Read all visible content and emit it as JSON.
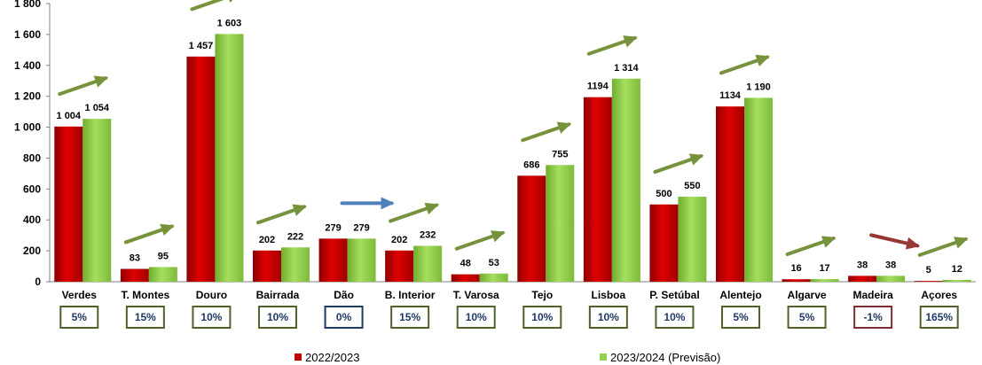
{
  "chart_data": {
    "type": "bar",
    "ylim": [
      0,
      1800
    ],
    "y_ticks": [
      "0",
      "200",
      "400",
      "600",
      "800",
      "1 000",
      "1 200",
      "1 400",
      "1 600",
      "1 800"
    ],
    "categories": [
      "Verdes",
      "T. Montes",
      "Douro",
      "Bairrada",
      "Dão",
      "B. Interior",
      "T. Varosa",
      "Tejo",
      "Lisboa",
      "P. Setúbal",
      "Alentejo",
      "Algarve",
      "Madeira",
      "Açores"
    ],
    "series": [
      {
        "name": "2022/2023",
        "color": "#c00000",
        "values": [
          1004,
          83,
          1457,
          202,
          279,
          202,
          48,
          686,
          1194,
          500,
          1134,
          16,
          38,
          5
        ],
        "labels": [
          "1 004",
          "83",
          "1 457",
          "202",
          "279",
          "202",
          "48",
          "686",
          "1194",
          "500",
          "1134",
          "16",
          "38",
          "5"
        ]
      },
      {
        "name": "2023/2024 (Previsão)",
        "color": "#92d050",
        "values": [
          1054,
          95,
          1603,
          222,
          279,
          232,
          53,
          755,
          1314,
          550,
          1190,
          17,
          38,
          12
        ],
        "labels": [
          "1 054",
          "95",
          "1 603",
          "222",
          "279",
          "232",
          "53",
          "755",
          "1 314",
          "550",
          "1 190",
          "17",
          "38",
          "12"
        ]
      }
    ],
    "change_pct": [
      "5%",
      "15%",
      "10%",
      "10%",
      "0%",
      "15%",
      "10%",
      "10%",
      "10%",
      "10%",
      "5%",
      "5%",
      "-1%",
      "165%"
    ],
    "trend": [
      "up",
      "up",
      "up",
      "up",
      "flat",
      "up",
      "up",
      "up",
      "up",
      "up",
      "up",
      "up",
      "down",
      "up"
    ],
    "trend_colors": {
      "up": "#76933c",
      "flat": "#4f81bd",
      "down": "#953735"
    },
    "box_colors": {
      "up": "#4f6228",
      "flat": "#1f3864",
      "down": "#7b2c2c"
    },
    "legend": {
      "position": "bottom"
    },
    "grid": false
  }
}
